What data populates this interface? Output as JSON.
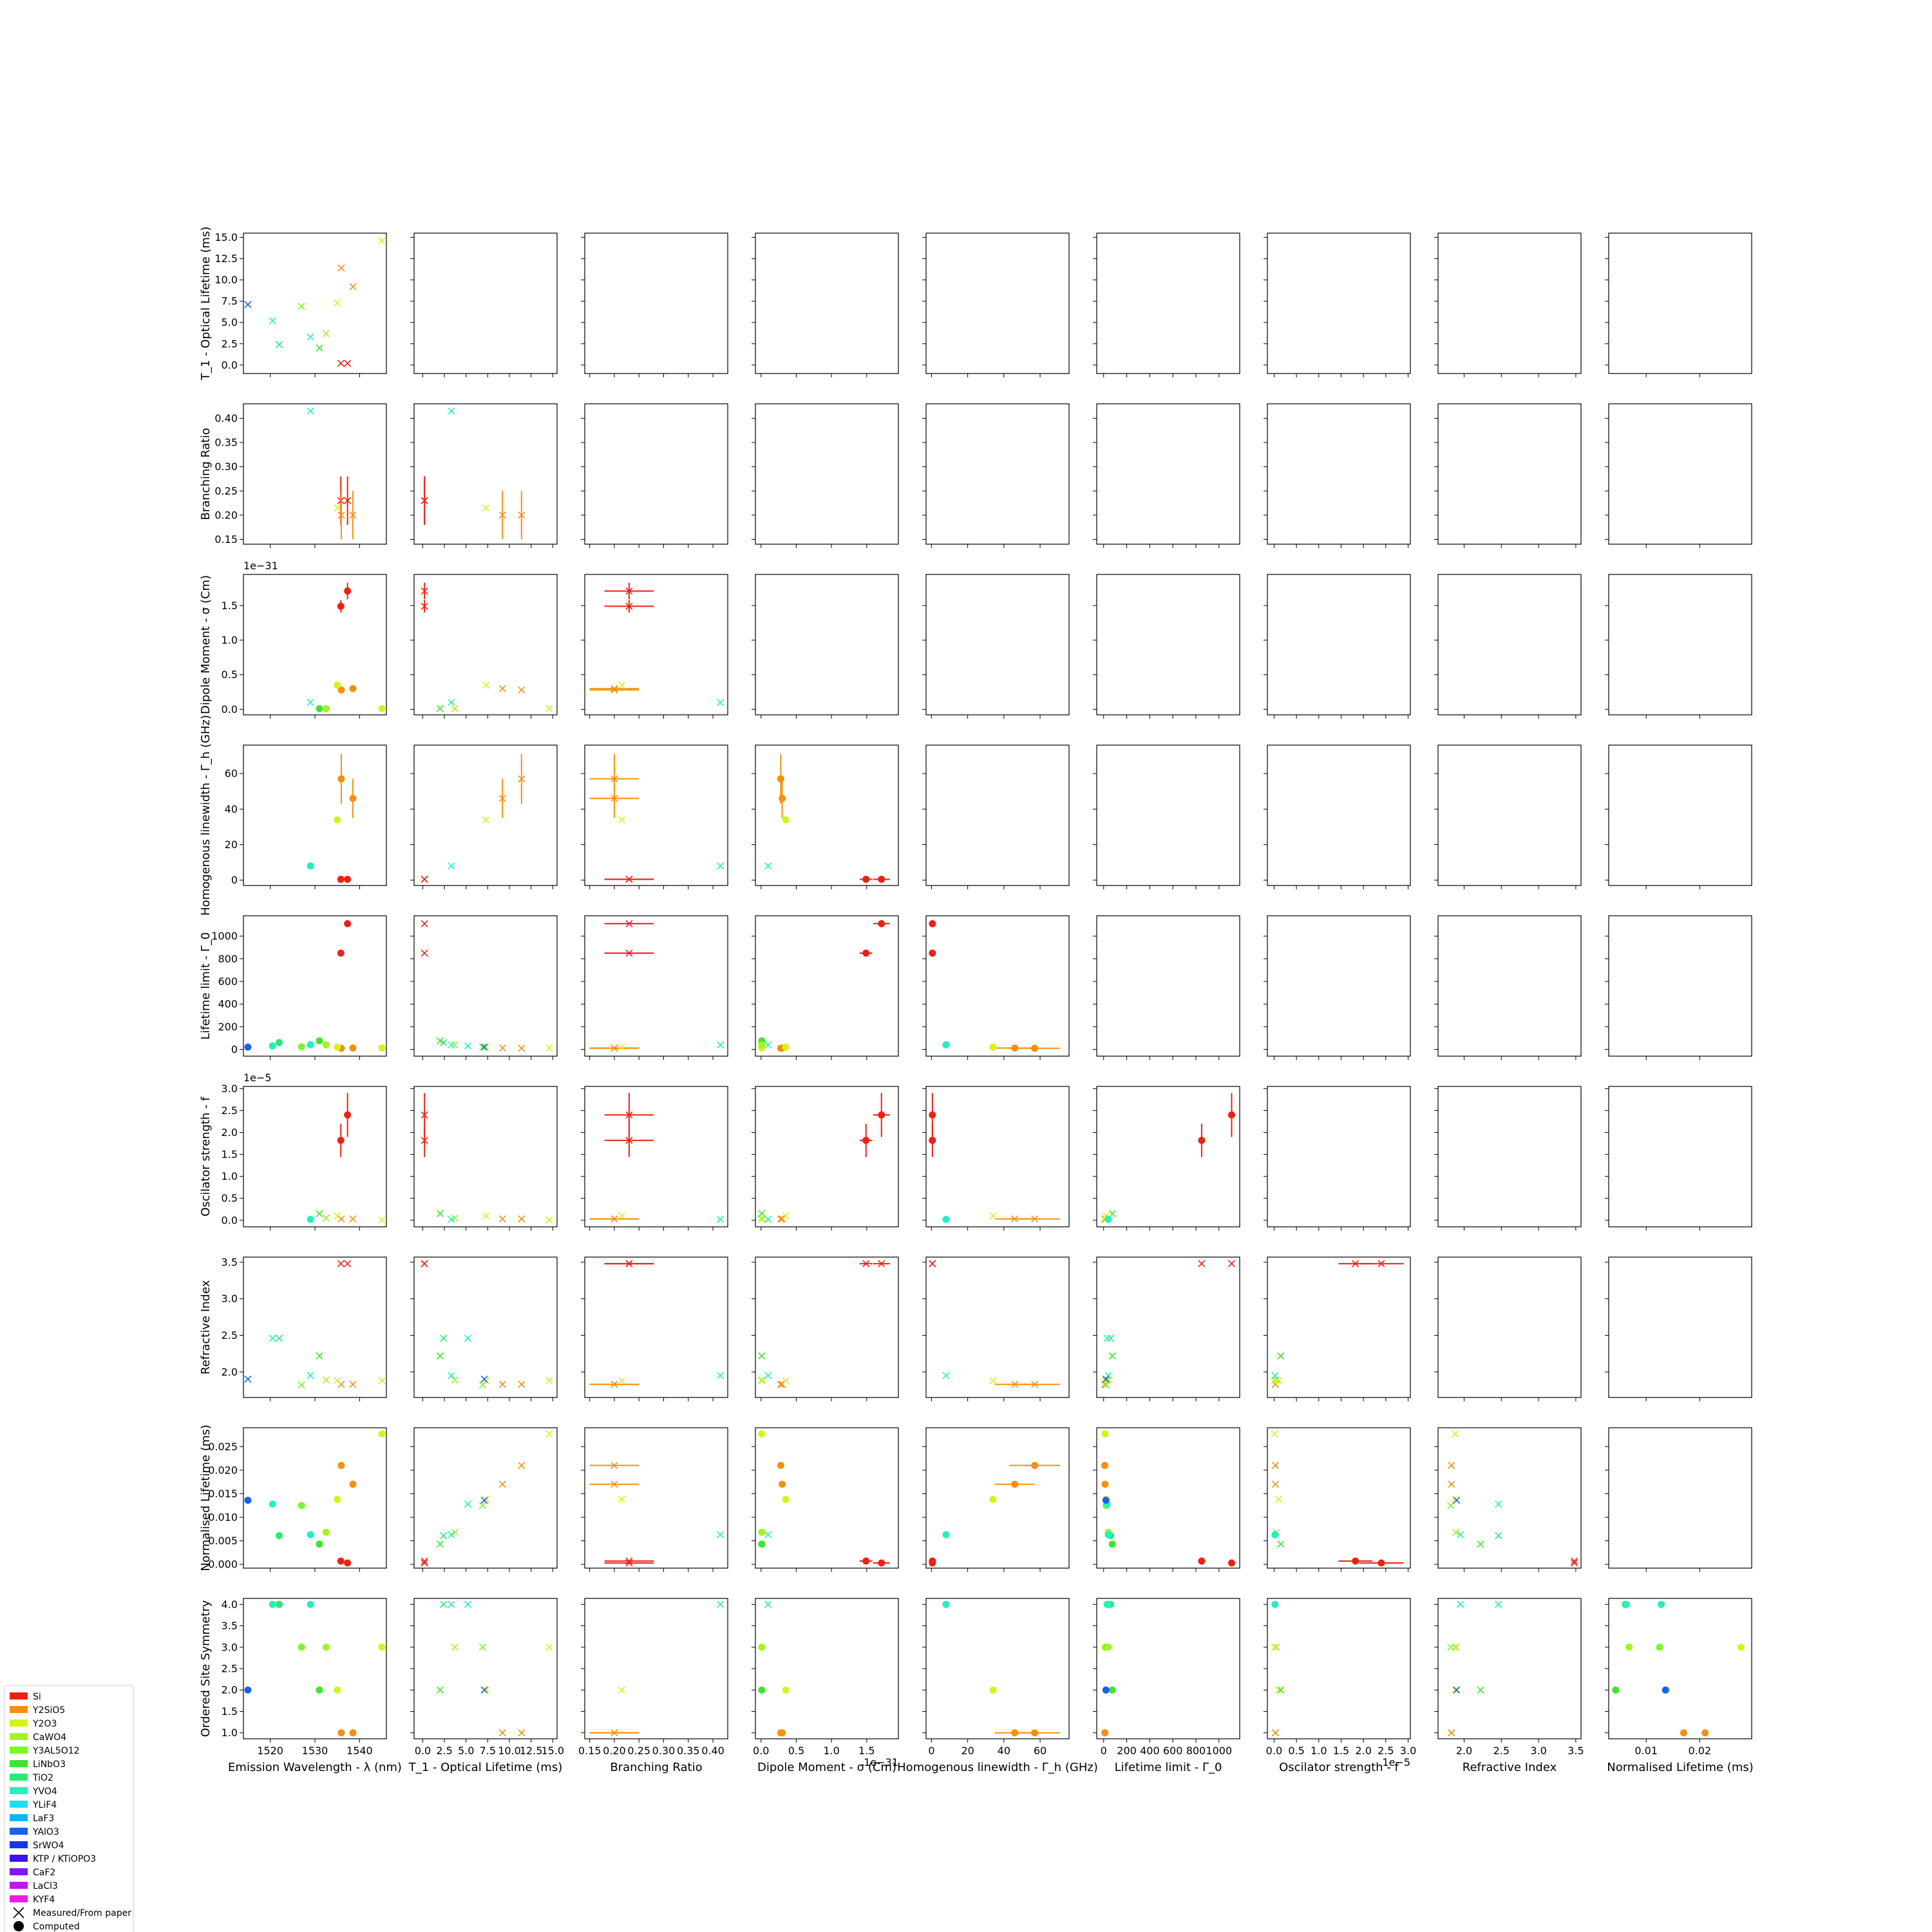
{
  "chart_data": {
    "type": "scatter",
    "variables": [
      {
        "label": "Emission Wavelength - λ (nm)",
        "ticks": [
          1520,
          1530,
          1540
        ],
        "ylim": [
          1514,
          1546
        ],
        "xlim": [
          1514,
          1546
        ]
      },
      {
        "label": "T_1 - Optical Lifetime (ms)",
        "ticks": [
          0.0,
          2.5,
          5.0,
          7.5,
          10.0,
          12.5,
          15.0
        ],
        "ylim": [
          -1,
          15.5
        ],
        "xlim": [
          -1,
          15.5
        ]
      },
      {
        "label": "Branching Ratio",
        "ticks": [
          0.15,
          0.2,
          0.25,
          0.3,
          0.35,
          0.4
        ],
        "ylim": [
          0.14,
          0.43
        ],
        "xlim": [
          0.14,
          0.43
        ]
      },
      {
        "label": "Dipole Moment - σ (Cm)",
        "ticks": [
          0.0,
          0.5,
          1.0,
          1.5
        ],
        "ylim": [
          -0.08,
          1.95
        ],
        "xlim": [
          -0.08,
          1.95
        ],
        "offset": "1e−31"
      },
      {
        "label": "Homogenous linewidth - Γ_h (GHz)",
        "ticks": [
          0,
          20,
          40,
          60
        ],
        "ylim": [
          -3,
          76
        ],
        "xlim": [
          -3,
          76
        ]
      },
      {
        "label": "Lifetime limit - Γ_0",
        "ticks": [
          0,
          200,
          400,
          600,
          800,
          1000
        ],
        "ylim": [
          -60,
          1180
        ],
        "xlim": [
          -60,
          1180
        ]
      },
      {
        "label": "Oscilator strength - f",
        "ticks": [
          0.0,
          0.5,
          1.0,
          1.5,
          2.0,
          2.5,
          3.0
        ],
        "ylim": [
          -0.15,
          3.05
        ],
        "xlim": [
          -0.15,
          3.05
        ],
        "offset": "1e−5"
      },
      {
        "label": "Refractive Index",
        "ticks": [
          2.0,
          2.5,
          3.0,
          3.5
        ],
        "ylim": [
          1.65,
          3.57
        ],
        "xlim": [
          1.65,
          3.57
        ]
      },
      {
        "label": "Normalised Lifetime (ms)",
        "ticks": [
          0.0,
          0.005,
          0.01,
          0.015,
          0.02,
          0.025
        ],
        "ylim": [
          -0.0008,
          0.029
        ],
        "xlim": [
          0.003,
          0.0297
        ],
        "xticks": [
          0.01,
          0.02
        ]
      },
      {
        "label": "Ordered Site Symmetry",
        "ticks": [
          1.0,
          1.5,
          2.0,
          2.5,
          3.0,
          3.5,
          4.0
        ],
        "ylim": [
          0.86,
          4.14
        ]
      }
    ],
    "hosts": [
      {
        "name": "Si",
        "color": "#ed2112"
      },
      {
        "name": "Y2SiO5",
        "color": "#f5900e"
      },
      {
        "name": "Y2O3",
        "color": "#d6f21c"
      },
      {
        "name": "CaWO4",
        "color": "#a3f51f"
      },
      {
        "name": "Y3AL5O12",
        "color": "#7af728"
      },
      {
        "name": "LiNbO3",
        "color": "#3de62b"
      },
      {
        "name": "TiO2",
        "color": "#27eb73"
      },
      {
        "name": "YVO4",
        "color": "#21f2bd"
      },
      {
        "name": "YLiF4",
        "color": "#1cdef0"
      },
      {
        "name": "LaF3",
        "color": "#15b4f0"
      },
      {
        "name": "YAlO3",
        "color": "#1863ed"
      },
      {
        "name": "SrWO4",
        "color": "#1238ed"
      },
      {
        "name": "KTP / KTiOPO3",
        "color": "#3b14ed"
      },
      {
        "name": "CaF2",
        "color": "#8217e8"
      },
      {
        "name": "LaCl3",
        "color": "#b81ce8"
      },
      {
        "name": "KYF4",
        "color": "#f21ae2"
      }
    ],
    "marker_legend": [
      {
        "name": "Measured/From paper",
        "marker": "x"
      },
      {
        "name": "Computed",
        "marker": "o"
      }
    ],
    "materials": [
      {
        "color": "#ed2112",
        "v": [
          1535.8,
          0.2,
          0.23,
          1.49,
          0.5,
          850,
          1.82,
          3.48,
          0.0007,
          null
        ],
        "m": [
          false,
          true,
          true,
          false,
          false,
          false,
          false,
          true,
          false,
          false
        ],
        "e": [
          null,
          null,
          0.05,
          0.09,
          null,
          null,
          0.38,
          null,
          null,
          null
        ]
      },
      {
        "color": "#ed2112",
        "v": [
          1537.3,
          0.2,
          0.23,
          1.71,
          0.5,
          1110,
          2.4,
          3.48,
          0.0003,
          null
        ],
        "m": [
          false,
          true,
          true,
          false,
          false,
          false,
          false,
          true,
          false,
          false
        ],
        "e": [
          null,
          null,
          0.05,
          0.12,
          null,
          null,
          0.5,
          null,
          null,
          null
        ]
      },
      {
        "color": "#f5900e",
        "v": [
          1535.9,
          11.4,
          0.2,
          0.28,
          57,
          10,
          0.03,
          1.83,
          0.021,
          1
        ],
        "m": [
          false,
          true,
          true,
          false,
          false,
          false,
          true,
          true,
          false,
          false
        ],
        "e": [
          null,
          null,
          0.05,
          null,
          14,
          null,
          null,
          null,
          null,
          null
        ]
      },
      {
        "color": "#f5900e",
        "v": [
          1538.5,
          9.2,
          0.2,
          0.3,
          46,
          12,
          0.03,
          1.83,
          0.017,
          1
        ],
        "m": [
          false,
          true,
          true,
          false,
          false,
          false,
          true,
          true,
          false,
          false
        ],
        "e": [
          null,
          null,
          0.05,
          null,
          11,
          null,
          null,
          null,
          null,
          null
        ]
      },
      {
        "color": "#d6f21c",
        "v": [
          1545,
          14.6,
          null,
          0.01,
          null,
          12,
          0.01,
          1.88,
          0.0277,
          3
        ],
        "m": [
          false,
          true,
          false,
          false,
          false,
          false,
          true,
          true,
          false,
          false
        ],
        "e": [
          null,
          null,
          null,
          null,
          null,
          null,
          null,
          null,
          null,
          null
        ]
      },
      {
        "color": "#d6f21c",
        "v": [
          1535,
          7.3,
          0.215,
          0.35,
          34,
          20,
          0.1,
          1.88,
          0.0138,
          2
        ],
        "m": [
          false,
          true,
          true,
          false,
          false,
          false,
          true,
          true,
          false,
          false
        ],
        "e": [
          null,
          null,
          null,
          null,
          null,
          null,
          null,
          null,
          null,
          null
        ]
      },
      {
        "color": "#7af728",
        "v": [
          1527,
          6.9,
          null,
          null,
          null,
          22,
          null,
          1.82,
          0.0125,
          3
        ],
        "m": [
          false,
          true,
          false,
          false,
          false,
          false,
          false,
          true,
          false,
          false
        ],
        "e": [
          null,
          null,
          null,
          null,
          null,
          null,
          null,
          null,
          null,
          null
        ]
      },
      {
        "color": "#3de62b",
        "v": [
          1531,
          2.0,
          null,
          0.01,
          null,
          75,
          0.15,
          2.22,
          0.0043,
          2
        ],
        "m": [
          false,
          true,
          false,
          false,
          false,
          false,
          true,
          true,
          false,
          false
        ],
        "e": [
          null,
          null,
          null,
          null,
          null,
          null,
          null,
          null,
          null,
          null
        ]
      },
      {
        "color": "#a3f51f",
        "v": [
          1532.5,
          3.7,
          null,
          0.01,
          null,
          40,
          0.05,
          1.89,
          0.0068,
          3
        ],
        "m": [
          false,
          true,
          false,
          false,
          false,
          false,
          true,
          true,
          false,
          false
        ],
        "e": [
          null,
          null,
          null,
          null,
          null,
          null,
          null,
          null,
          null,
          null
        ]
      },
      {
        "color": "#27eb73",
        "v": [
          1522,
          2.4,
          null,
          null,
          null,
          60,
          null,
          2.46,
          0.0061,
          4
        ],
        "m": [
          false,
          true,
          false,
          false,
          false,
          false,
          false,
          true,
          false,
          false
        ],
        "e": [
          null,
          null,
          null,
          null,
          null,
          null,
          null,
          null,
          null,
          null
        ]
      },
      {
        "color": "#21f2bd",
        "v": [
          1529,
          3.3,
          0.415,
          0.1,
          8,
          40,
          0.02,
          1.95,
          0.0063,
          4
        ],
        "m": [
          false,
          true,
          true,
          true,
          false,
          false,
          false,
          true,
          false,
          false
        ],
        "e": [
          null,
          null,
          null,
          null,
          null,
          null,
          null,
          null,
          null,
          null
        ]
      },
      {
        "color": "#21f2bd",
        "v": [
          1520.5,
          5.2,
          null,
          null,
          null,
          30,
          null,
          2.46,
          0.0128,
          4
        ],
        "m": [
          false,
          true,
          false,
          false,
          false,
          false,
          false,
          true,
          false,
          false
        ],
        "e": [
          null,
          null,
          null,
          null,
          null,
          null,
          null,
          null,
          null,
          null
        ]
      },
      {
        "color": "#1863ed",
        "v": [
          1515,
          7.1,
          null,
          null,
          null,
          20,
          null,
          1.9,
          0.0136,
          2
        ],
        "m": [
          false,
          true,
          false,
          false,
          false,
          false,
          false,
          true,
          false,
          false
        ],
        "e": [
          null,
          null,
          null,
          null,
          null,
          null,
          null,
          null,
          null,
          null
        ]
      }
    ]
  }
}
